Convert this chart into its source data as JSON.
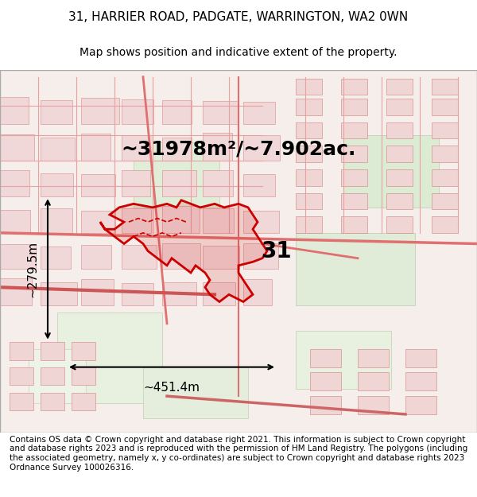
{
  "title_line1": "31, HARRIER ROAD, PADGATE, WARRINGTON, WA2 0WN",
  "title_line2": "Map shows position and indicative extent of the property.",
  "area_text": "~31978m²/~7.902ac.",
  "width_text": "~451.4m",
  "height_text": "~279.5m",
  "label_number": "31",
  "footer_text": "Contains OS data © Crown copyright and database right 2021. This information is subject to Crown copyright and database rights 2023 and is reproduced with the permission of HM Land Registry. The polygons (including the associated geometry, namely x, y co-ordinates) are subject to Crown copyright and database rights 2023 Ordnance Survey 100026316.",
  "map_bg_color": "#f5e8e0",
  "map_border_color": "#cccccc",
  "title_fontsize": 11,
  "subtitle_fontsize": 10,
  "area_fontsize": 18,
  "measurement_fontsize": 11,
  "footer_fontsize": 7.5,
  "fig_width": 6.0,
  "fig_height": 6.25,
  "dpi": 100
}
